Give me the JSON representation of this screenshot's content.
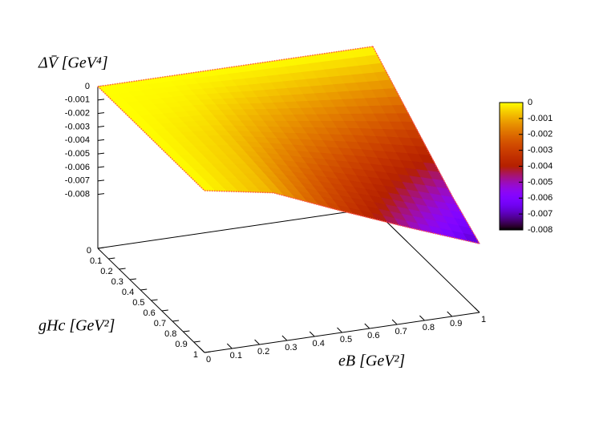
{
  "chart_data": {
    "type": "surface",
    "zlabel": "ΔV̄  [GeV⁴]",
    "xlabel": "eB  [GeV²]",
    "ylabel": "gHc  [GeV²]",
    "x": [
      0,
      0.25,
      0.5,
      0.75,
      1
    ],
    "y": [
      0,
      0.25,
      0.5,
      0.75,
      1
    ],
    "z": [
      [
        0,
        0,
        0,
        0,
        0
      ],
      [
        0,
        -0.0002,
        -0.0008,
        -0.0013,
        -0.0018
      ],
      [
        0,
        -0.0005,
        -0.0015,
        -0.0025,
        -0.0036
      ],
      [
        0,
        -0.0007,
        -0.0023,
        -0.0038,
        -0.0054
      ],
      [
        0,
        -0.0009,
        -0.003,
        -0.005,
        -0.0069
      ]
    ],
    "xlim": [
      0,
      1
    ],
    "ylim": [
      0,
      1
    ],
    "zlim": [
      -0.012,
      0
    ],
    "xticks": [
      0,
      0.1,
      0.2,
      0.3,
      0.4,
      0.5,
      0.6,
      0.7,
      0.8,
      0.9,
      1
    ],
    "yticks": [
      0,
      0.1,
      0.2,
      0.3,
      0.4,
      0.5,
      0.6,
      0.7,
      0.8,
      0.9,
      1
    ],
    "zticks": [
      0,
      -0.001,
      -0.002,
      -0.003,
      -0.004,
      -0.005,
      -0.006,
      -0.007,
      -0.008
    ],
    "cblim": [
      -0.008,
      0
    ],
    "cbticks": [
      0,
      -0.001,
      -0.002,
      -0.003,
      -0.004,
      -0.005,
      -0.006,
      -0.007,
      -0.008
    ],
    "colormap": "gnuplot",
    "edge_color": "#ff5050"
  }
}
